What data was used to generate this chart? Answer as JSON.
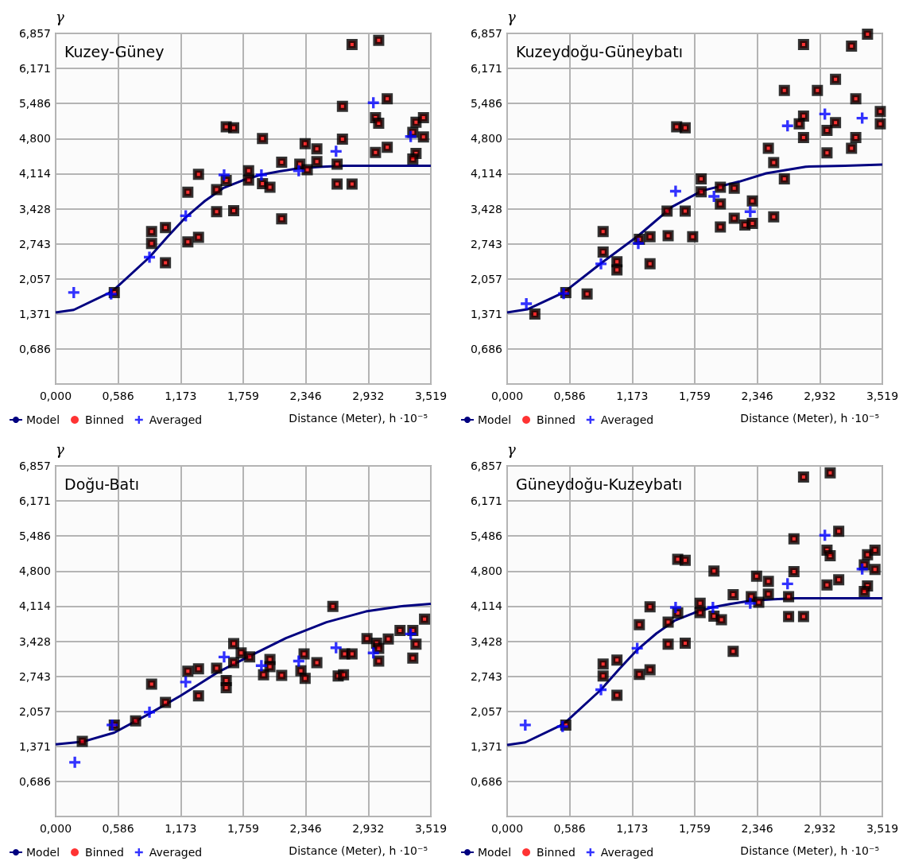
{
  "chart_data": [
    {
      "type": "scatter",
      "title": "Kuzey-Güney",
      "xlabel": "Distance (Meter), h ·10⁻⁵",
      "ylabel": "γ",
      "xlim": [
        0,
        3.519
      ],
      "ylim": [
        0,
        6.857
      ],
      "xticks": [
        {
          "value": 0,
          "label": "0,000"
        },
        {
          "value": 0.586,
          "label": "0,586"
        },
        {
          "value": 1.173,
          "label": "1,173"
        },
        {
          "value": 1.759,
          "label": "1,759"
        },
        {
          "value": 2.346,
          "label": "2,346"
        },
        {
          "value": 2.932,
          "label": "2,932"
        },
        {
          "value": 3.519,
          "label": "3,519"
        }
      ],
      "yticks": [
        {
          "value": 0,
          "label": null
        },
        {
          "value": 0.686,
          "label": "0,686"
        },
        {
          "value": 1.371,
          "label": "1,371"
        },
        {
          "value": 2.057,
          "label": "2,057"
        },
        {
          "value": 2.743,
          "label": "2,743"
        },
        {
          "value": 3.428,
          "label": "3,428"
        },
        {
          "value": 4.114,
          "label": "4,114"
        },
        {
          "value": 4.8,
          "label": "4,800"
        },
        {
          "value": 5.486,
          "label": "5,486"
        },
        {
          "value": 6.171,
          "label": "6,171"
        },
        {
          "value": 6.857,
          "label": "6,857"
        }
      ],
      "grid": true,
      "legend": "bottom left",
      "series": [
        {
          "name": "Model",
          "type": "line",
          "color": "#000080",
          "marker": "none",
          "x": [
            0,
            0.17,
            0.53,
            0.88,
            1.05,
            1.22,
            1.4,
            1.57,
            1.75,
            1.92,
            2.1,
            2.29,
            2.5,
            2.71,
            3.519
          ],
          "values": [
            1.4,
            1.45,
            1.81,
            2.48,
            2.88,
            3.26,
            3.58,
            3.83,
            3.98,
            4.09,
            4.16,
            4.22,
            4.25,
            4.27,
            4.27
          ]
        },
        {
          "name": "Binned",
          "color": "#ff0000",
          "marker": "square",
          "x": [
            0.55,
            0.9,
            0.9,
            1.03,
            1.03,
            1.24,
            1.24,
            1.34,
            1.34,
            1.51,
            1.51,
            1.6,
            1.67,
            1.67,
            1.6,
            1.81,
            1.81,
            1.94,
            1.94,
            2.01,
            2.12,
            2.12,
            2.34,
            2.45,
            2.45,
            2.29,
            2.36,
            2.64,
            2.64,
            2.69,
            2.69,
            2.78,
            2.78,
            3.03,
            3.11,
            3.11,
            3.0,
            3.03,
            3.0,
            3.38,
            3.45,
            3.45,
            3.38,
            3.35,
            3.35
          ],
          "values": [
            1.79,
            2.98,
            2.75,
            3.06,
            2.37,
            3.75,
            2.78,
            2.87,
            4.1,
            3.8,
            3.37,
            5.03,
            5.01,
            3.39,
            3.98,
            4.17,
            3.99,
            4.8,
            3.92,
            3.85,
            4.34,
            3.23,
            4.7,
            4.6,
            4.35,
            4.3,
            4.19,
            4.3,
            3.91,
            4.79,
            5.43,
            6.64,
            3.91,
            6.72,
            5.58,
            4.63,
            5.21,
            5.1,
            4.53,
            5.12,
            5.21,
            4.83,
            4.51,
            4.4,
            4.92
          ]
        },
        {
          "name": "Averaged",
          "color": "#0000ff",
          "marker": "cross",
          "x": [
            0.17,
            0.52,
            0.88,
            1.22,
            1.58,
            1.93,
            2.28,
            2.63,
            2.98,
            3.33
          ],
          "values": [
            1.79,
            1.76,
            2.48,
            3.29,
            4.09,
            4.09,
            4.17,
            4.55,
            5.5,
            4.84
          ]
        }
      ]
    },
    {
      "type": "scatter",
      "title": "Kuzeydoğu-Güneybatı",
      "xlabel": "Distance (Meter), h ·10⁻⁵",
      "ylabel": "γ",
      "xlim": [
        0,
        3.519
      ],
      "ylim": [
        0,
        6.857
      ],
      "xticks": [
        {
          "value": 0,
          "label": "0,000"
        },
        {
          "value": 0.586,
          "label": "0,586"
        },
        {
          "value": 1.173,
          "label": "1,173"
        },
        {
          "value": 1.759,
          "label": "1,759"
        },
        {
          "value": 2.346,
          "label": "2,346"
        },
        {
          "value": 2.932,
          "label": "2,932"
        },
        {
          "value": 3.519,
          "label": "3,519"
        }
      ],
      "yticks": [
        {
          "value": 0,
          "label": null
        },
        {
          "value": 0.686,
          "label": "0,686"
        },
        {
          "value": 1.371,
          "label": "1,371"
        },
        {
          "value": 2.057,
          "label": "2,057"
        },
        {
          "value": 2.743,
          "label": "2,743"
        },
        {
          "value": 3.428,
          "label": "3,428"
        },
        {
          "value": 4.114,
          "label": "4,114"
        },
        {
          "value": 4.8,
          "label": "4,800"
        },
        {
          "value": 5.486,
          "label": "5,486"
        },
        {
          "value": 6.171,
          "label": "6,171"
        },
        {
          "value": 6.857,
          "label": "6,857"
        }
      ],
      "grid": true,
      "legend": "bottom left",
      "series": [
        {
          "name": "Model",
          "type": "line",
          "color": "#000080",
          "marker": "none",
          "x": [
            0,
            0.19,
            0.53,
            0.88,
            1.23,
            1.55,
            1.83,
            2.18,
            2.43,
            2.8,
            3.17,
            3.519
          ],
          "values": [
            1.4,
            1.46,
            1.79,
            2.36,
            2.9,
            3.47,
            3.78,
            3.96,
            4.12,
            4.25,
            4.27,
            4.29
          ]
        },
        {
          "name": "Binned",
          "color": "#ff0000",
          "marker": "square",
          "x": [
            0.26,
            0.55,
            0.75,
            0.9,
            0.9,
            1.03,
            1.03,
            1.24,
            1.34,
            1.34,
            1.5,
            1.51,
            1.59,
            1.67,
            1.67,
            1.74,
            1.82,
            1.82,
            2.0,
            2.0,
            2.0,
            2.13,
            2.13,
            2.23,
            2.3,
            2.3,
            2.5,
            2.45,
            2.5,
            2.6,
            2.6,
            2.78,
            2.78,
            2.74,
            2.78,
            2.91,
            3.0,
            3.0,
            3.08,
            3.08,
            3.23,
            3.27,
            3.27,
            3.23,
            3.38,
            3.5,
            3.5
          ],
          "values": [
            1.37,
            1.79,
            1.76,
            2.98,
            2.58,
            2.39,
            2.23,
            2.83,
            2.88,
            2.35,
            3.38,
            2.9,
            5.03,
            5.01,
            3.38,
            2.88,
            4.01,
            3.76,
            3.85,
            3.52,
            3.07,
            3.83,
            3.24,
            3.11,
            3.14,
            3.58,
            3.27,
            4.61,
            4.33,
            4.01,
            5.74,
            6.64,
            5.24,
            5.09,
            4.82,
            5.74,
            4.96,
            4.52,
            5.96,
            5.11,
            6.61,
            5.58,
            4.82,
            4.61,
            6.84,
            5.33,
            5.09
          ]
        },
        {
          "name": "Averaged",
          "color": "#0000ff",
          "marker": "cross",
          "x": [
            0.18,
            0.53,
            0.88,
            1.23,
            1.58,
            1.94,
            2.28,
            2.63,
            2.98,
            3.33
          ],
          "values": [
            1.57,
            1.77,
            2.35,
            2.75,
            3.77,
            3.67,
            3.37,
            5.05,
            5.28,
            5.2
          ]
        }
      ]
    },
    {
      "type": "scatter",
      "title": "Doğu-Batı",
      "xlabel": "Distance (Meter), h ·10⁻⁵",
      "ylabel": "γ",
      "xlim": [
        0,
        3.519
      ],
      "ylim": [
        0,
        6.857
      ],
      "xticks": [
        {
          "value": 0,
          "label": "0,000"
        },
        {
          "value": 0.586,
          "label": "0,586"
        },
        {
          "value": 1.173,
          "label": "1,173"
        },
        {
          "value": 1.759,
          "label": "1,759"
        },
        {
          "value": 2.346,
          "label": "2,346"
        },
        {
          "value": 2.932,
          "label": "2,932"
        },
        {
          "value": 3.519,
          "label": "3,519"
        }
      ],
      "yticks": [
        {
          "value": 0,
          "label": null
        },
        {
          "value": 0.686,
          "label": "0,686"
        },
        {
          "value": 1.371,
          "label": "1,371"
        },
        {
          "value": 2.057,
          "label": "2,057"
        },
        {
          "value": 2.743,
          "label": "2,743"
        },
        {
          "value": 3.428,
          "label": "3,428"
        },
        {
          "value": 4.114,
          "label": "4,114"
        },
        {
          "value": 4.8,
          "label": "4,800"
        },
        {
          "value": 5.486,
          "label": "5,486"
        },
        {
          "value": 6.171,
          "label": "6,171"
        },
        {
          "value": 6.857,
          "label": "6,857"
        }
      ],
      "grid": true,
      "legend": "bottom left",
      "series": [
        {
          "name": "Model",
          "type": "line",
          "color": "#000080",
          "marker": "none",
          "x": [
            0,
            0.25,
            0.55,
            0.87,
            1.17,
            1.52,
            1.87,
            2.16,
            2.54,
            2.91,
            3.23,
            3.519
          ],
          "values": [
            1.41,
            1.46,
            1.64,
            2.0,
            2.36,
            2.82,
            3.19,
            3.49,
            3.8,
            4.01,
            4.11,
            4.16
          ]
        },
        {
          "name": "Binned",
          "color": "#ff0000",
          "marker": "square",
          "x": [
            0.25,
            0.55,
            0.75,
            0.9,
            1.03,
            1.24,
            1.34,
            1.34,
            1.51,
            1.6,
            1.6,
            1.67,
            1.67,
            1.74,
            1.82,
            2.01,
            2.01,
            1.95,
            2.12,
            2.33,
            2.3,
            2.34,
            2.45,
            2.6,
            2.65,
            2.7,
            2.71,
            2.78,
            2.92,
            3.01,
            3.03,
            3.03,
            3.12,
            3.23,
            3.35,
            3.38,
            3.35,
            3.46
          ],
          "values": [
            1.47,
            1.79,
            1.87,
            2.59,
            2.23,
            2.84,
            2.89,
            2.36,
            2.9,
            2.66,
            2.52,
            3.38,
            3.01,
            3.2,
            3.12,
            3.07,
            2.93,
            2.77,
            2.76,
            3.18,
            2.85,
            2.7,
            3.01,
            4.11,
            2.75,
            2.77,
            3.18,
            3.18,
            3.48,
            3.39,
            3.04,
            3.29,
            3.47,
            3.64,
            3.64,
            3.37,
            3.1,
            3.86
          ]
        },
        {
          "name": "Averaged",
          "color": "#0000ff",
          "marker": "cross",
          "x": [
            0.18,
            0.53,
            0.88,
            1.22,
            1.58,
            1.93,
            2.28,
            2.63,
            2.98,
            3.33
          ],
          "values": [
            1.06,
            1.79,
            2.04,
            2.63,
            3.12,
            2.95,
            3.04,
            3.3,
            3.2,
            3.57
          ]
        }
      ]
    },
    {
      "type": "scatter",
      "title": "Güneydoğu-Kuzeybatı",
      "xlabel": "Distance (Meter), h ·10⁻⁵",
      "ylabel": "γ",
      "xlim": [
        0,
        3.519
      ],
      "ylim": [
        0,
        6.857
      ],
      "xticks": [
        {
          "value": 0,
          "label": "0,000"
        },
        {
          "value": 0.586,
          "label": "0,586"
        },
        {
          "value": 1.173,
          "label": "1,173"
        },
        {
          "value": 1.759,
          "label": "1,759"
        },
        {
          "value": 2.346,
          "label": "2,346"
        },
        {
          "value": 2.932,
          "label": "2,932"
        },
        {
          "value": 3.519,
          "label": "3,519"
        }
      ],
      "yticks": [
        {
          "value": 0,
          "label": null
        },
        {
          "value": 0.686,
          "label": "0,686"
        },
        {
          "value": 1.371,
          "label": "1,371"
        },
        {
          "value": 2.057,
          "label": "2,057"
        },
        {
          "value": 2.743,
          "label": "2,743"
        },
        {
          "value": 3.428,
          "label": "3,428"
        },
        {
          "value": 4.114,
          "label": "4,114"
        },
        {
          "value": 4.8,
          "label": "4,800"
        },
        {
          "value": 5.486,
          "label": "5,486"
        },
        {
          "value": 6.171,
          "label": "6,171"
        },
        {
          "value": 6.857,
          "label": "6,857"
        }
      ],
      "grid": true,
      "legend": "bottom left",
      "series": [
        {
          "name": "Model",
          "type": "line",
          "color": "#000080",
          "marker": "none",
          "x": [
            0,
            0.17,
            0.53,
            0.88,
            1.05,
            1.22,
            1.4,
            1.57,
            1.75,
            1.92,
            2.1,
            2.29,
            2.5,
            2.71,
            3.519
          ],
          "values": [
            1.4,
            1.45,
            1.81,
            2.48,
            2.88,
            3.26,
            3.58,
            3.83,
            3.98,
            4.09,
            4.16,
            4.22,
            4.25,
            4.27,
            4.27
          ]
        },
        {
          "name": "Binned",
          "color": "#ff0000",
          "marker": "square",
          "x": [
            0.55,
            0.9,
            0.9,
            1.03,
            1.03,
            1.24,
            1.24,
            1.34,
            1.34,
            1.51,
            1.51,
            1.6,
            1.67,
            1.67,
            1.6,
            1.81,
            1.81,
            1.94,
            1.94,
            2.01,
            2.12,
            2.12,
            2.34,
            2.45,
            2.45,
            2.29,
            2.36,
            2.64,
            2.64,
            2.69,
            2.69,
            2.78,
            2.78,
            3.03,
            3.11,
            3.11,
            3.0,
            3.03,
            3.0,
            3.38,
            3.45,
            3.45,
            3.38,
            3.35,
            3.35
          ],
          "values": [
            1.79,
            2.98,
            2.75,
            3.06,
            2.37,
            3.75,
            2.78,
            2.87,
            4.1,
            3.8,
            3.37,
            5.03,
            5.01,
            3.39,
            3.98,
            4.17,
            3.99,
            4.8,
            3.92,
            3.85,
            4.34,
            3.23,
            4.7,
            4.6,
            4.35,
            4.3,
            4.19,
            4.3,
            3.91,
            4.79,
            5.43,
            6.64,
            3.91,
            6.72,
            5.58,
            4.63,
            5.21,
            5.1,
            4.53,
            5.12,
            5.21,
            4.83,
            4.51,
            4.4,
            4.92
          ]
        },
        {
          "name": "Averaged",
          "color": "#0000ff",
          "marker": "cross",
          "x": [
            0.17,
            0.52,
            0.88,
            1.22,
            1.58,
            1.93,
            2.28,
            2.63,
            2.98,
            3.33
          ],
          "values": [
            1.79,
            1.76,
            2.48,
            3.29,
            4.09,
            4.09,
            4.17,
            4.55,
            5.5,
            4.84
          ]
        }
      ]
    }
  ]
}
